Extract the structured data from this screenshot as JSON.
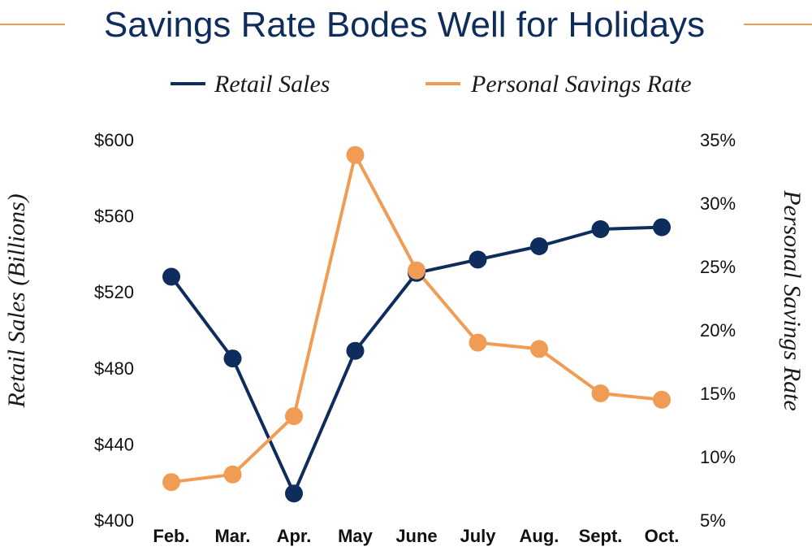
{
  "chart_data": {
    "type": "line",
    "title": "Savings Rate Bodes Well for Holidays",
    "categories": [
      "Feb.",
      "Mar.",
      "Apr.",
      "May",
      "June",
      "July",
      "Aug.",
      "Sept.",
      "Oct."
    ],
    "y_left": {
      "label": "Retail Sales (Billions)",
      "range": [
        400,
        600
      ],
      "ticks": [
        400,
        440,
        480,
        520,
        560,
        600
      ],
      "tick_labels": [
        "$400",
        "$440",
        "$480",
        "$520",
        "$560",
        "$600"
      ]
    },
    "y_right": {
      "label": "Personal Savings Rate",
      "range": [
        5,
        35
      ],
      "ticks": [
        5,
        10,
        15,
        20,
        25,
        30,
        35
      ],
      "tick_labels": [
        "5%",
        "10%",
        "15%",
        "20%",
        "25%",
        "30%",
        "35%"
      ]
    },
    "series": [
      {
        "name": "Retail Sales",
        "axis": "left",
        "color": "#0f2d5c",
        "values": [
          528,
          485,
          414,
          489,
          530,
          537,
          544,
          553,
          554
        ]
      },
      {
        "name": "Personal Savings Rate",
        "axis": "right",
        "color": "#f19c55",
        "values": [
          8.0,
          8.6,
          13.2,
          33.8,
          24.7,
          19.0,
          18.5,
          15.0,
          14.5
        ]
      }
    ],
    "legend_position": "top",
    "grid": false
  },
  "colors": {
    "title": "#0f2d5c",
    "rule": "#f19c55"
  }
}
